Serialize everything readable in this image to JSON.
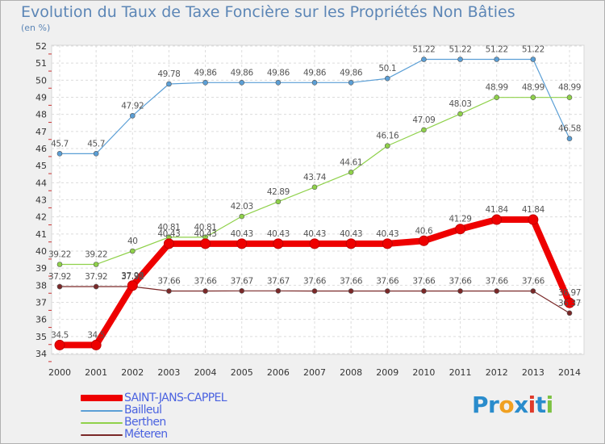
{
  "chart_data": {
    "type": "line",
    "title": "Evolution du Taux de Taxe Foncière sur les Propriétés Non Bâties",
    "subtitle": "(en %)",
    "xlabel": "",
    "ylabel": "",
    "ylim": [
      34,
      52
    ],
    "yticks": [
      "34",
      "35",
      "36",
      "37",
      "38",
      "39",
      "40",
      "41",
      "42",
      "43",
      "44",
      "45",
      "46",
      "47",
      "48",
      "49",
      "50",
      "51",
      "52"
    ],
    "categories": [
      "2000",
      "2001",
      "2002",
      "2003",
      "2004",
      "2005",
      "2006",
      "2007",
      "2008",
      "2009",
      "2010",
      "2011",
      "2012",
      "2013",
      "2014"
    ],
    "series": [
      {
        "name": "SAINT-JANS-CAPPEL",
        "color": "#ee0000",
        "values": [
          34.5,
          34.5,
          37.98,
          40.43,
          40.43,
          40.43,
          40.43,
          40.43,
          40.43,
          40.43,
          40.6,
          41.29,
          41.84,
          41.84,
          36.97
        ],
        "labels": [
          "34.5",
          "34.5",
          "37.98",
          "40.43",
          "40.43",
          "40.43",
          "40.43",
          "40.43",
          "40.43",
          "40.43",
          "40.6",
          "41.29",
          "41.84",
          "41.84",
          "36.97"
        ]
      },
      {
        "name": "Bailleul",
        "color": "#5b9fd6",
        "values": [
          45.7,
          45.7,
          47.92,
          49.78,
          49.86,
          49.86,
          49.86,
          49.86,
          49.86,
          50.1,
          51.22,
          51.22,
          51.22,
          51.22,
          46.58
        ],
        "labels": [
          "45.7",
          "45.7",
          "47.92",
          "49.78",
          "49.86",
          "49.86",
          "49.86",
          "49.86",
          "49.86",
          "50.1",
          "51.22",
          "51.22",
          "51.22",
          "51.22",
          "46.58"
        ]
      },
      {
        "name": "Berthen",
        "color": "#8fd14a",
        "values": [
          39.22,
          39.22,
          40,
          40.81,
          40.81,
          42.03,
          42.89,
          43.74,
          44.61,
          46.16,
          47.09,
          48.03,
          48.99,
          48.99,
          48.99
        ],
        "labels": [
          "39.22",
          "39.22",
          "40",
          "40.81",
          "40.81",
          "42.03",
          "42.89",
          "43.74",
          "44.61",
          "46.16",
          "47.09",
          "48.03",
          "48.99",
          "48.99",
          "48.99"
        ]
      },
      {
        "name": "Méteren",
        "color": "#7a2828",
        "values": [
          37.92,
          37.92,
          37.92,
          37.66,
          37.66,
          37.67,
          37.67,
          37.66,
          37.66,
          37.66,
          37.66,
          37.66,
          37.66,
          37.66,
          36.37
        ],
        "labels": [
          "37.92",
          "37.92",
          "37.92",
          "37.66",
          "37.66",
          "37.67",
          "37.67",
          "37.66",
          "37.66",
          "37.66",
          "37.66",
          "37.66",
          "37.66",
          "37.66",
          "36.37"
        ]
      }
    ],
    "legend": "bottom-left",
    "grid": true
  },
  "logo_text": "Proxiti"
}
